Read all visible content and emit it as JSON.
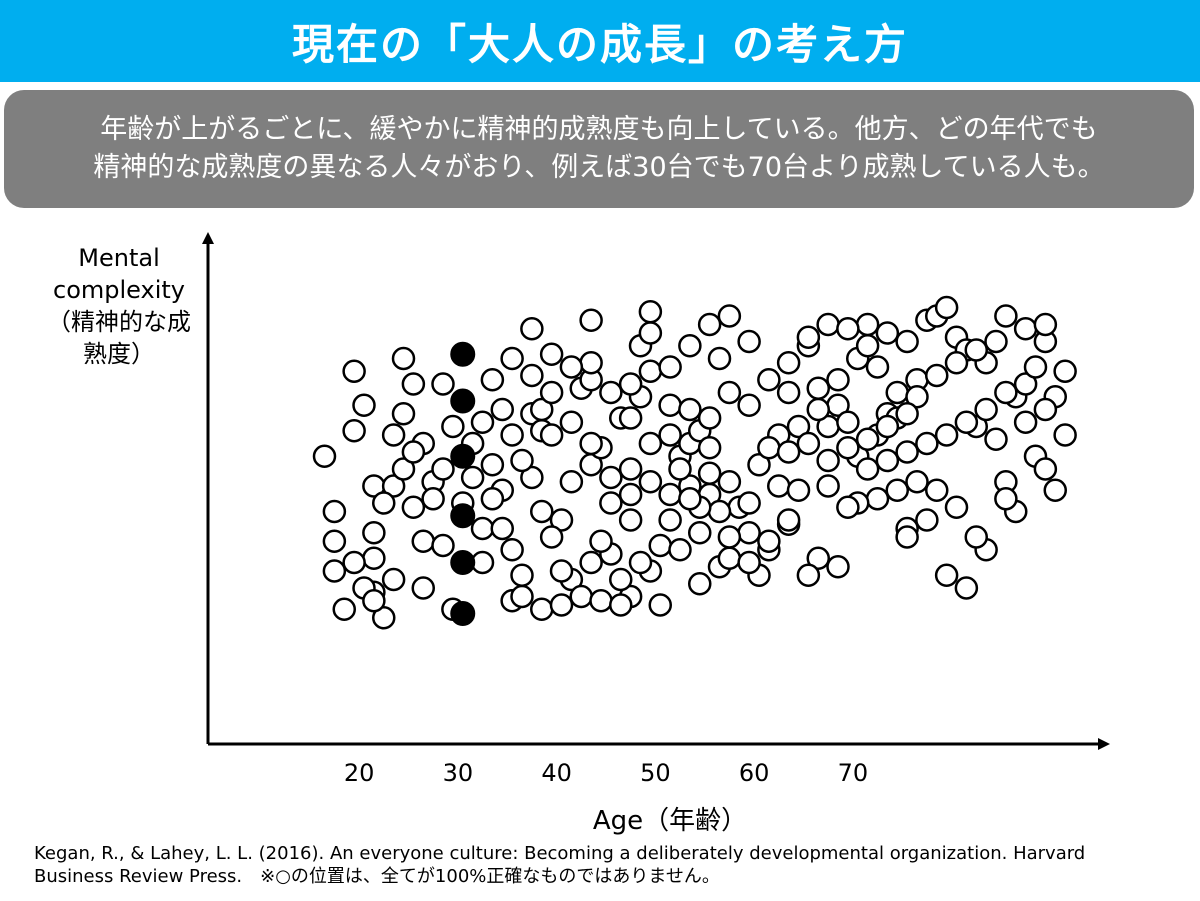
{
  "header": {
    "title": "現在の「大人の成長」の考え方",
    "title_bg": "#00aeef"
  },
  "summary": {
    "line1": "年齢が上がるごとに、緩やかに精神的成熟度も向上している。他方、どの年代でも",
    "line2": "精神的な成熟度の異なる人々がおり、例えば30台でも70台より成熟している人も。",
    "bg": "#7f7f7f"
  },
  "chart_data": {
    "type": "scatter",
    "ylabel": [
      "Mental",
      "complexity",
      "（精神的な成",
      "熟度）"
    ],
    "xlabel": "Age（年齢）",
    "xticks": [
      "20",
      "30",
      "40",
      "50",
      "60",
      "70"
    ],
    "xlim": [
      13,
      93
    ],
    "ylim": [
      0,
      100
    ],
    "grid": false,
    "axis_arrows": true,
    "highlight_age": 31,
    "highlight_values": [
      [
        31,
        79
      ],
      [
        31,
        68
      ],
      [
        31,
        55
      ],
      [
        31,
        41
      ],
      [
        31,
        30
      ],
      [
        31,
        18
      ]
    ],
    "points": [
      [
        17,
        55
      ],
      [
        18,
        42
      ],
      [
        18,
        35
      ],
      [
        18,
        28
      ],
      [
        19,
        19
      ],
      [
        20,
        61
      ],
      [
        20,
        75
      ],
      [
        21,
        67
      ],
      [
        22,
        48
      ],
      [
        22,
        37
      ],
      [
        22,
        31
      ],
      [
        22,
        23
      ],
      [
        23,
        17
      ],
      [
        24,
        48
      ],
      [
        25,
        78
      ],
      [
        25,
        65
      ],
      [
        26,
        72
      ],
      [
        26,
        43
      ],
      [
        27,
        35
      ],
      [
        27,
        24
      ],
      [
        28,
        49
      ],
      [
        29,
        72
      ],
      [
        29,
        34
      ],
      [
        30,
        19
      ],
      [
        31,
        44
      ],
      [
        32,
        58
      ],
      [
        32,
        50
      ],
      [
        33,
        63
      ],
      [
        34,
        53
      ],
      [
        35,
        66
      ],
      [
        36,
        33
      ],
      [
        36,
        21
      ],
      [
        37,
        22
      ],
      [
        38,
        85
      ],
      [
        38,
        65
      ],
      [
        39,
        61
      ],
      [
        39,
        66
      ],
      [
        40,
        79
      ],
      [
        41,
        40
      ],
      [
        42,
        49
      ],
      [
        43,
        71
      ],
      [
        44,
        73
      ],
      [
        44,
        87
      ],
      [
        42,
        26
      ],
      [
        44,
        53
      ],
      [
        44,
        77
      ],
      [
        45,
        57
      ],
      [
        46,
        70
      ],
      [
        47,
        64
      ],
      [
        48,
        64
      ],
      [
        49,
        69
      ],
      [
        50,
        89
      ],
      [
        48,
        40
      ],
      [
        49,
        81
      ],
      [
        50,
        84
      ],
      [
        52,
        67
      ],
      [
        53,
        55
      ],
      [
        54,
        58
      ],
      [
        55,
        61
      ],
      [
        56,
        46
      ],
      [
        57,
        78
      ],
      [
        55,
        25
      ],
      [
        57,
        29
      ],
      [
        58,
        49
      ],
      [
        59,
        43
      ],
      [
        60,
        44
      ],
      [
        61,
        27
      ],
      [
        62,
        33
      ],
      [
        64,
        39
      ],
      [
        64,
        77
      ],
      [
        66,
        81
      ],
      [
        67,
        71
      ],
      [
        68,
        62
      ],
      [
        69,
        67
      ],
      [
        70,
        63
      ],
      [
        71,
        55
      ],
      [
        72,
        86
      ],
      [
        73,
        60
      ],
      [
        74,
        65
      ],
      [
        75,
        64
      ],
      [
        76,
        82
      ],
      [
        76,
        38
      ],
      [
        77,
        73
      ],
      [
        78,
        87
      ],
      [
        79,
        88
      ],
      [
        80,
        90
      ],
      [
        81,
        83
      ],
      [
        82,
        80
      ],
      [
        83,
        62
      ],
      [
        84,
        77
      ],
      [
        85,
        59
      ],
      [
        86,
        49
      ],
      [
        87,
        69
      ],
      [
        88,
        72
      ],
      [
        89,
        76
      ],
      [
        90,
        82
      ],
      [
        91,
        69
      ],
      [
        92,
        60
      ],
      [
        89,
        55
      ],
      [
        90,
        52
      ],
      [
        87,
        42
      ],
      [
        86,
        45
      ],
      [
        84,
        33
      ],
      [
        82,
        24
      ],
      [
        80,
        27
      ],
      [
        78,
        40
      ],
      [
        77,
        49
      ],
      [
        76,
        36
      ],
      [
        75,
        47
      ],
      [
        73,
        45
      ],
      [
        71,
        44
      ],
      [
        69,
        29
      ],
      [
        67,
        31
      ],
      [
        66,
        27
      ],
      [
        64,
        40
      ],
      [
        62,
        35
      ],
      [
        60,
        37
      ],
      [
        58,
        36
      ],
      [
        57,
        42
      ],
      [
        56,
        51
      ],
      [
        55,
        43
      ],
      [
        54,
        48
      ],
      [
        53,
        52
      ],
      [
        52,
        40
      ],
      [
        51,
        34
      ],
      [
        50,
        28
      ],
      [
        49,
        30
      ],
      [
        48,
        22
      ],
      [
        47,
        26
      ],
      [
        46,
        32
      ],
      [
        45,
        35
      ],
      [
        44,
        30
      ],
      [
        43,
        22
      ],
      [
        41,
        28
      ],
      [
        40,
        36
      ],
      [
        39,
        42
      ],
      [
        38,
        50
      ],
      [
        37,
        54
      ],
      [
        36,
        60
      ],
      [
        35,
        47
      ],
      [
        34,
        45
      ],
      [
        33,
        38
      ],
      [
        33,
        30
      ],
      [
        35,
        38
      ],
      [
        37,
        27
      ],
      [
        39,
        19
      ],
      [
        41,
        20
      ],
      [
        45,
        21
      ],
      [
        47,
        20
      ],
      [
        51,
        20
      ],
      [
        53,
        33
      ],
      [
        55,
        37
      ],
      [
        58,
        31
      ],
      [
        60,
        30
      ],
      [
        63,
        48
      ],
      [
        65,
        47
      ],
      [
        68,
        48
      ],
      [
        70,
        43
      ],
      [
        72,
        52
      ],
      [
        74,
        54
      ],
      [
        76,
        56
      ],
      [
        78,
        58
      ],
      [
        80,
        60
      ],
      [
        82,
        63
      ],
      [
        84,
        66
      ],
      [
        86,
        70
      ],
      [
        88,
        63
      ],
      [
        90,
        66
      ],
      [
        91,
        47
      ],
      [
        79,
        47
      ],
      [
        81,
        43
      ],
      [
        83,
        36
      ],
      [
        61,
        53
      ],
      [
        63,
        60
      ],
      [
        65,
        62
      ],
      [
        67,
        66
      ],
      [
        69,
        73
      ],
      [
        71,
        78
      ],
      [
        73,
        76
      ],
      [
        75,
        70
      ],
      [
        77,
        69
      ],
      [
        79,
        74
      ],
      [
        81,
        77
      ],
      [
        83,
        80
      ],
      [
        85,
        82
      ],
      [
        86,
        88
      ],
      [
        88,
        85
      ],
      [
        90,
        86
      ],
      [
        92,
        75
      ],
      [
        30,
        62
      ],
      [
        29,
        52
      ],
      [
        27,
        58
      ],
      [
        25,
        52
      ],
      [
        24,
        60
      ],
      [
        23,
        44
      ],
      [
        26,
        56
      ],
      [
        28,
        45
      ],
      [
        20,
        30
      ],
      [
        21,
        24
      ],
      [
        22,
        21
      ],
      [
        24,
        26
      ],
      [
        34,
        73
      ],
      [
        36,
        78
      ],
      [
        38,
        74
      ],
      [
        40,
        70
      ],
      [
        42,
        76
      ],
      [
        48,
        72
      ],
      [
        50,
        75
      ],
      [
        52,
        76
      ],
      [
        54,
        81
      ],
      [
        56,
        86
      ],
      [
        58,
        88
      ],
      [
        60,
        82
      ],
      [
        62,
        73
      ],
      [
        64,
        70
      ],
      [
        66,
        83
      ],
      [
        68,
        86
      ],
      [
        70,
        85
      ],
      [
        72,
        81
      ],
      [
        74,
        84
      ],
      [
        46,
        50
      ],
      [
        48,
        46
      ],
      [
        50,
        58
      ],
      [
        52,
        60
      ],
      [
        54,
        66
      ],
      [
        56,
        64
      ],
      [
        58,
        70
      ],
      [
        60,
        67
      ],
      [
        62,
        57
      ],
      [
        64,
        56
      ],
      [
        66,
        58
      ],
      [
        68,
        54
      ],
      [
        70,
        57
      ],
      [
        72,
        59
      ],
      [
        74,
        62
      ],
      [
        76,
        65
      ],
      [
        40,
        60
      ],
      [
        42,
        63
      ],
      [
        44,
        58
      ],
      [
        46,
        44
      ],
      [
        48,
        52
      ],
      [
        50,
        49
      ],
      [
        52,
        46
      ],
      [
        54,
        45
      ],
      [
        56,
        57
      ]
    ]
  },
  "citation": {
    "line1": "Kegan, R., & Lahey, L. L. (2016). An everyone culture: Becoming a deliberately developmental organization. Harvard",
    "line2": "Business Review Press.　※○の位置は、全てが100%正確なものではありません。"
  }
}
